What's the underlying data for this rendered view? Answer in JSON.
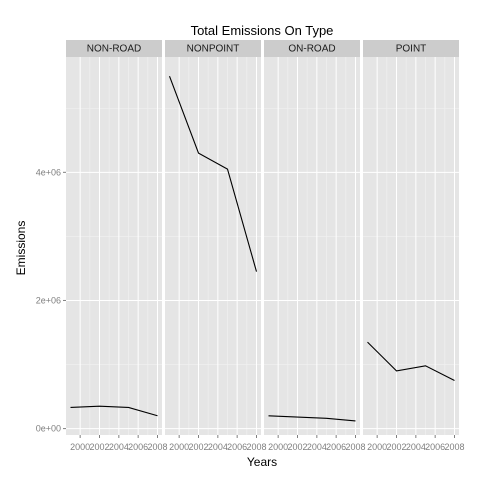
{
  "chart_data": {
    "type": "line",
    "title": "Total Emissions On Type",
    "xlabel": "Years",
    "ylabel": "Emissions",
    "facets": [
      "NON-ROAD",
      "NONPOINT",
      "ON-ROAD",
      "POINT"
    ],
    "x": [
      1999,
      2002,
      2005,
      2008
    ],
    "x_ticks": [
      2000,
      2002,
      2004,
      2006,
      2008
    ],
    "x_tick_labels": [
      "2000",
      "2002",
      "2004",
      "2006",
      "2008"
    ],
    "xlim": [
      1999,
      2008
    ],
    "y_ticks": [
      0,
      2000000,
      4000000
    ],
    "y_tick_labels": [
      "0e+00",
      "2e+06",
      "4e+06"
    ],
    "ylim": [
      -100000,
      5800000
    ],
    "grid": true,
    "series": [
      {
        "facet": "NON-ROAD",
        "values": [
          330000,
          350000,
          330000,
          200000
        ]
      },
      {
        "facet": "NONPOINT",
        "values": [
          5500000,
          4300000,
          4050000,
          2450000
        ]
      },
      {
        "facet": "ON-ROAD",
        "values": [
          200000,
          180000,
          160000,
          120000
        ]
      },
      {
        "facet": "POINT",
        "values": [
          1350000,
          900000,
          980000,
          750000
        ]
      }
    ],
    "colors": {
      "line": "#000000",
      "panel": "#e5e5e5",
      "strip": "#cccccc",
      "grid": "#ffffff"
    }
  }
}
